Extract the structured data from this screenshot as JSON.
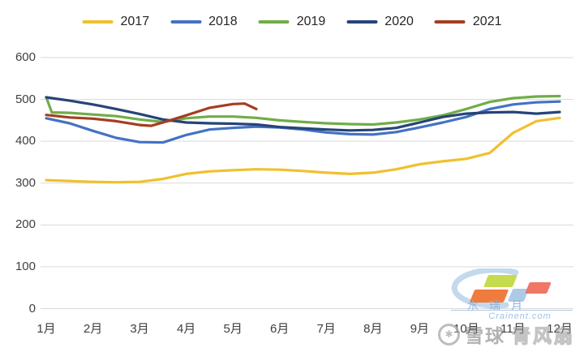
{
  "watermarks": {
    "brand": {
      "title": "水瑞月",
      "domain": "Crainent.com"
    },
    "social": {
      "site": "雪球",
      "user": "青风扇",
      "icon": "snowball-icon",
      "icon_glyph": "✱"
    }
  },
  "chart_data": {
    "type": "line",
    "title": "",
    "xlabel": "",
    "ylabel": "",
    "grid": true,
    "legend_position": "top",
    "x_axis": {
      "categories": [
        "1月",
        "2月",
        "3月",
        "4月",
        "5月",
        "6月",
        "7月",
        "8月",
        "9月",
        "10月",
        "11月",
        "12月"
      ]
    },
    "y_axis": {
      "min": 0,
      "max": 600,
      "step": 100,
      "ticks": [
        0,
        100,
        200,
        300,
        400,
        500,
        600
      ]
    },
    "series": [
      {
        "name": "2017",
        "color": "#f0c02e",
        "x": [
          1,
          1.5,
          2,
          2.5,
          3,
          3.5,
          4,
          4.5,
          5,
          5.5,
          6,
          6.5,
          7,
          7.5,
          8,
          8.5,
          9,
          9.5,
          10,
          10.5,
          11,
          11.5,
          12
        ],
        "values": [
          307,
          305,
          303,
          302,
          303,
          310,
          322,
          328,
          331,
          333,
          332,
          329,
          325,
          322,
          325,
          333,
          345,
          352,
          358,
          372,
          420,
          448,
          456
        ]
      },
      {
        "name": "2018",
        "color": "#4472c4",
        "x": [
          1,
          1.5,
          2,
          2.5,
          3,
          3.5,
          4,
          4.5,
          5,
          5.5,
          6,
          6.5,
          7,
          7.5,
          8,
          8.5,
          9,
          9.5,
          10,
          10.5,
          11,
          11.5,
          12
        ],
        "values": [
          455,
          443,
          425,
          408,
          398,
          397,
          415,
          428,
          432,
          435,
          433,
          428,
          421,
          417,
          416,
          422,
          433,
          445,
          458,
          477,
          488,
          493,
          495
        ]
      },
      {
        "name": "2019",
        "color": "#70ad47",
        "x": [
          1,
          1.12,
          1.5,
          2,
          2.5,
          3,
          3.5,
          4,
          4.5,
          5,
          5.5,
          6,
          6.5,
          7,
          7.5,
          8,
          8.5,
          9,
          9.5,
          10,
          10.5,
          11,
          11.5,
          12
        ],
        "values": [
          505,
          469,
          468,
          464,
          460,
          452,
          446,
          455,
          459,
          459,
          456,
          450,
          446,
          443,
          441,
          440,
          445,
          452,
          462,
          477,
          494,
          503,
          507,
          508
        ]
      },
      {
        "name": "2020",
        "color": "#264478",
        "x": [
          1,
          1.5,
          2,
          2.5,
          3,
          3.5,
          4,
          4.5,
          5,
          5.5,
          6,
          6.5,
          7,
          7.5,
          8,
          8.5,
          9,
          9.5,
          10,
          10.5,
          11,
          11.5,
          12
        ],
        "values": [
          505,
          497,
          488,
          477,
          465,
          452,
          445,
          443,
          442,
          440,
          434,
          431,
          428,
          426,
          427,
          432,
          445,
          458,
          466,
          469,
          470,
          466,
          470
        ]
      },
      {
        "name": "2021",
        "color": "#a43e20",
        "x": [
          1,
          1.5,
          2,
          2.5,
          3,
          3.25,
          3.5,
          4,
          4.5,
          5,
          5.25,
          5.5
        ],
        "values": [
          463,
          457,
          454,
          448,
          439,
          437,
          445,
          462,
          480,
          489,
          490,
          477
        ]
      }
    ]
  }
}
